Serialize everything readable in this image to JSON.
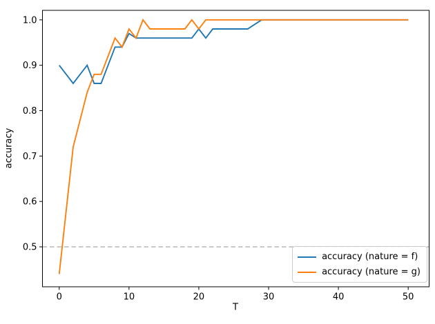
{
  "chart_data": {
    "type": "line",
    "title": "",
    "xlabel": "T",
    "ylabel": "accuracy",
    "grid": false,
    "xlim": [
      -2.4,
      53.0
    ],
    "ylim": [
      0.412,
      1.021
    ],
    "xticks": [
      0,
      10,
      20,
      30,
      40,
      50
    ],
    "yticks": [
      0.5,
      0.6,
      0.7,
      0.8,
      0.9,
      1.0
    ],
    "x": [
      0,
      1,
      2,
      3,
      4,
      5,
      6,
      7,
      8,
      9,
      10,
      11,
      12,
      13,
      14,
      15,
      16,
      17,
      18,
      19,
      20,
      21,
      22,
      23,
      24,
      25,
      26,
      27,
      28,
      29,
      30,
      31,
      32,
      33,
      34,
      35,
      36,
      37,
      38,
      39,
      40,
      41,
      42,
      43,
      44,
      45,
      46,
      47,
      48,
      49,
      50
    ],
    "series": [
      {
        "name": "accuracy (nature = f)",
        "color": "#1f77b4",
        "values": [
          0.9,
          0.88,
          0.86,
          0.88,
          0.9,
          0.86,
          0.86,
          0.9,
          0.94,
          0.94,
          0.97,
          0.96,
          0.96,
          0.96,
          0.96,
          0.96,
          0.96,
          0.96,
          0.96,
          0.96,
          0.98,
          0.96,
          0.98,
          0.98,
          0.98,
          0.98,
          0.98,
          0.98,
          0.99,
          1.0,
          1.0,
          1.0,
          1.0,
          1.0,
          1.0,
          1.0,
          1.0,
          1.0,
          1.0,
          1.0,
          1.0,
          1.0,
          1.0,
          1.0,
          1.0,
          1.0,
          1.0,
          1.0,
          1.0,
          1.0,
          1.0
        ]
      },
      {
        "name": "accuracy (nature = g)",
        "color": "#ff7f0e",
        "values": [
          0.44,
          0.58,
          0.72,
          0.78,
          0.84,
          0.88,
          0.88,
          0.92,
          0.96,
          0.94,
          0.98,
          0.96,
          1.0,
          0.98,
          0.98,
          0.98,
          0.98,
          0.98,
          0.98,
          1.0,
          0.98,
          1.0,
          1.0,
          1.0,
          1.0,
          1.0,
          1.0,
          1.0,
          1.0,
          1.0,
          1.0,
          1.0,
          1.0,
          1.0,
          1.0,
          1.0,
          1.0,
          1.0,
          1.0,
          1.0,
          1.0,
          1.0,
          1.0,
          1.0,
          1.0,
          1.0,
          1.0,
          1.0,
          1.0,
          1.0,
          1.0
        ]
      }
    ],
    "reference_line": {
      "y": 0.5,
      "style": "dashed",
      "color": "#b0b0b0"
    },
    "legend": {
      "position": "lower right",
      "entries": [
        "accuracy (nature = f)",
        "accuracy (nature = g)"
      ]
    }
  }
}
